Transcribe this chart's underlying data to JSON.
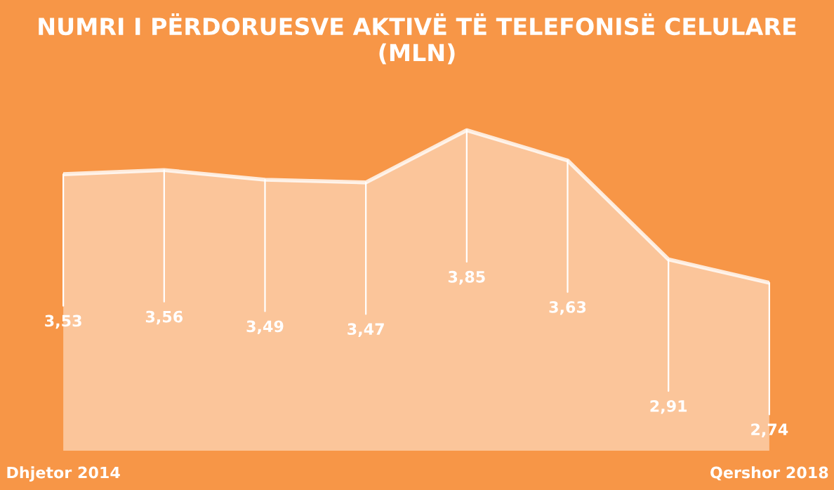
{
  "chart_data": {
    "type": "area",
    "title": "NUMRI I PËRDORUESVE AKTIVË TË TELEFONISË CELULARE (MLN)",
    "categories": [
      "Dhjetor 2014",
      null,
      null,
      null,
      null,
      null,
      null,
      "Qershor 2018"
    ],
    "series": [
      {
        "color": "#ffffff",
        "values": [
          3.53,
          3.56,
          3.49,
          3.47,
          3.85,
          3.63,
          2.91,
          2.74
        ],
        "value_labels": [
          "3,53",
          "3,56",
          "3,49",
          "3,47",
          "3,85",
          "3,63",
          "2,91",
          "2,74"
        ]
      }
    ],
    "grid": false,
    "legend": false
  }
}
